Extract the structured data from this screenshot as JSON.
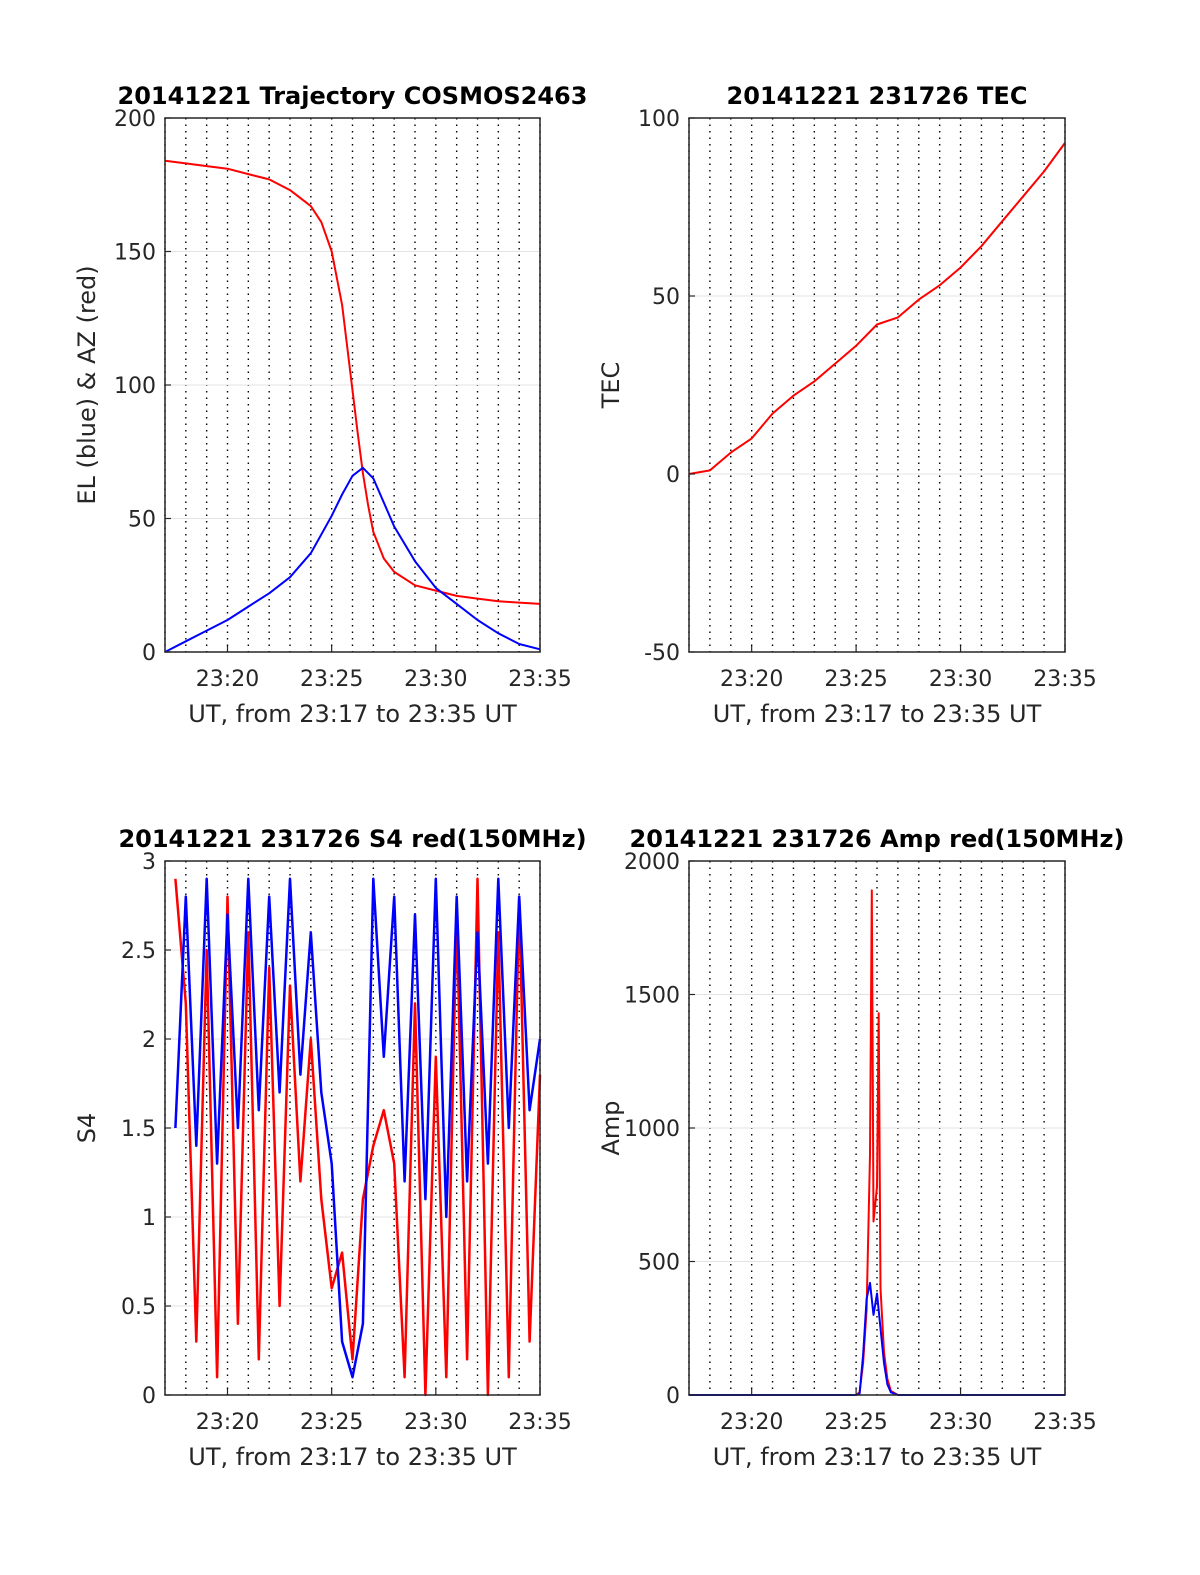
{
  "figure": {
    "background": "#ffffff"
  },
  "chart_data": [
    {
      "id": "trajectory",
      "type": "line",
      "title": "20141221 Trajectory COSMOS2463",
      "xlabel": "UT, from 23:17 to 23:35 UT",
      "ylabel": "EL (blue) & AZ (red)",
      "xlim": [
        "23:17",
        "23:35"
      ],
      "ylim": [
        0,
        200
      ],
      "xticks": [
        "23:20",
        "23:25",
        "23:30",
        "23:35"
      ],
      "yticks": [
        0,
        50,
        100,
        150,
        200
      ],
      "grid": true,
      "series": [
        {
          "color": "#ff0000",
          "x": [
            "23:17",
            "23:18",
            "23:19",
            "23:20",
            "23:21",
            "23:22",
            "23:23",
            "23:24",
            "23:24:30",
            "23:25",
            "23:25:30",
            "23:26",
            "23:26:15",
            "23:26:30",
            "23:26:45",
            "23:27",
            "23:27:30",
            "23:28",
            "23:29",
            "23:30",
            "23:31",
            "23:32",
            "23:33",
            "23:34",
            "23:35"
          ],
          "values": [
            184,
            183,
            182,
            181,
            179,
            177,
            173,
            167,
            161,
            150,
            130,
            98,
            82,
            67,
            55,
            45,
            35,
            30,
            25,
            23,
            21,
            20,
            19,
            18.5,
            18
          ]
        },
        {
          "color": "#0000ff",
          "x": [
            "23:17",
            "23:18",
            "23:19",
            "23:20",
            "23:21",
            "23:22",
            "23:23",
            "23:24",
            "23:24:30",
            "23:25",
            "23:25:30",
            "23:26",
            "23:26:30",
            "23:27",
            "23:27:30",
            "23:28",
            "23:29",
            "23:30",
            "23:31",
            "23:32",
            "23:33",
            "23:34",
            "23:35"
          ],
          "values": [
            0,
            4,
            8,
            12,
            17,
            22,
            28,
            37,
            44,
            51,
            59,
            66,
            69,
            65,
            56,
            47,
            34,
            24,
            18,
            12,
            7,
            3,
            1
          ]
        }
      ]
    },
    {
      "id": "tec",
      "type": "line",
      "title": "20141221 231726 TEC",
      "xlabel": "UT, from 23:17 to 23:35 UT",
      "ylabel": "TEC",
      "xlim": [
        "23:17",
        "23:35"
      ],
      "ylim": [
        -50,
        100
      ],
      "xticks": [
        "23:20",
        "23:25",
        "23:30",
        "23:35"
      ],
      "yticks": [
        -50,
        0,
        50,
        100
      ],
      "grid": true,
      "series": [
        {
          "color": "#ff0000",
          "x": [
            "23:17",
            "23:18",
            "23:19",
            "23:20",
            "23:21",
            "23:22",
            "23:23",
            "23:24",
            "23:25",
            "23:26",
            "23:27",
            "23:28",
            "23:29",
            "23:30",
            "23:31",
            "23:32",
            "23:33",
            "23:34",
            "23:35"
          ],
          "values": [
            0,
            1,
            6,
            10,
            17,
            22,
            26,
            31,
            36,
            42,
            44,
            49,
            53,
            58,
            64,
            71,
            78,
            85,
            93
          ]
        }
      ]
    },
    {
      "id": "s4",
      "type": "line",
      "title": "20141221 231726 S4 red(150MHz)",
      "xlabel": "UT, from 23:17 to 23:35 UT",
      "ylabel": "S4",
      "xlim": [
        "23:17",
        "23:35"
      ],
      "ylim": [
        0,
        3
      ],
      "xticks": [
        "23:20",
        "23:25",
        "23:30",
        "23:35"
      ],
      "yticks": [
        0,
        0.5,
        1,
        1.5,
        2,
        2.5,
        3
      ],
      "grid": true,
      "series": [
        {
          "color": "#ff0000",
          "x": [
            "23:17:30",
            "23:18",
            "23:18:30",
            "23:19",
            "23:19:30",
            "23:20",
            "23:20:30",
            "23:21",
            "23:21:30",
            "23:22",
            "23:22:30",
            "23:23",
            "23:23:30",
            "23:24",
            "23:24:30",
            "23:25",
            "23:25:30",
            "23:26",
            "23:26:30",
            "23:27",
            "23:27:30",
            "23:28",
            "23:28:30",
            "23:29",
            "23:29:30",
            "23:30",
            "23:30:30",
            "23:31",
            "23:31:30",
            "23:32",
            "23:32:30",
            "23:33",
            "23:33:30",
            "23:34",
            "23:34:30",
            "23:35"
          ],
          "values": [
            2.9,
            2.2,
            0.3,
            2.5,
            0.1,
            2.8,
            0.4,
            2.6,
            0.2,
            2.4,
            0.5,
            2.3,
            1.2,
            2.0,
            1.1,
            0.6,
            0.8,
            0.2,
            1.1,
            1.4,
            1.6,
            1.3,
            0.1,
            2.2,
            0.0,
            1.9,
            0.1,
            2.7,
            0.2,
            2.9,
            0.0,
            2.6,
            0.1,
            2.8,
            0.3,
            1.8
          ]
        },
        {
          "color": "#0000ff",
          "x": [
            "23:17:30",
            "23:18",
            "23:18:30",
            "23:19",
            "23:19:30",
            "23:20",
            "23:20:30",
            "23:21",
            "23:21:30",
            "23:22",
            "23:22:30",
            "23:23",
            "23:23:30",
            "23:24",
            "23:24:30",
            "23:25",
            "23:25:30",
            "23:26",
            "23:26:30",
            "23:27",
            "23:27:30",
            "23:28",
            "23:28:30",
            "23:29",
            "23:29:30",
            "23:30",
            "23:30:30",
            "23:31",
            "23:31:30",
            "23:32",
            "23:32:30",
            "23:33",
            "23:33:30",
            "23:34",
            "23:34:30",
            "23:35"
          ],
          "values": [
            1.5,
            2.8,
            1.4,
            2.9,
            1.3,
            2.7,
            1.5,
            2.9,
            1.6,
            2.8,
            1.7,
            2.9,
            1.8,
            2.6,
            1.7,
            1.3,
            0.3,
            0.1,
            0.4,
            2.9,
            1.9,
            2.8,
            1.2,
            2.7,
            1.1,
            2.9,
            1.0,
            2.8,
            1.2,
            2.6,
            1.3,
            2.9,
            1.5,
            2.8,
            1.6,
            2.0
          ]
        }
      ]
    },
    {
      "id": "amp",
      "type": "line",
      "title": "20141221 231726 Amp red(150MHz)",
      "xlabel": "UT, from 23:17 to 23:35 UT",
      "ylabel": "Amp",
      "xlim": [
        "23:17",
        "23:35"
      ],
      "ylim": [
        0,
        2000
      ],
      "xticks": [
        "23:20",
        "23:25",
        "23:30",
        "23:35"
      ],
      "yticks": [
        0,
        500,
        1000,
        1500,
        2000
      ],
      "grid": true,
      "series": [
        {
          "color": "#ff0000",
          "x": [
            "23:17",
            "23:25",
            "23:25:10",
            "23:25:20",
            "23:25:30",
            "23:25:40",
            "23:25:45",
            "23:25:50",
            "23:26",
            "23:26:05",
            "23:26:10",
            "23:26:20",
            "23:26:30",
            "23:26:40",
            "23:27",
            "23:35"
          ],
          "values": [
            0,
            0,
            10,
            120,
            320,
            900,
            1890,
            650,
            780,
            1430,
            400,
            160,
            60,
            15,
            0,
            0
          ]
        },
        {
          "color": "#0000ff",
          "x": [
            "23:17",
            "23:25",
            "23:25:10",
            "23:25:20",
            "23:25:30",
            "23:25:40",
            "23:25:50",
            "23:26",
            "23:26:10",
            "23:26:20",
            "23:26:30",
            "23:26:40",
            "23:27",
            "23:35"
          ],
          "values": [
            0,
            0,
            5,
            150,
            360,
            420,
            300,
            380,
            250,
            120,
            40,
            10,
            0,
            0
          ]
        }
      ]
    }
  ]
}
